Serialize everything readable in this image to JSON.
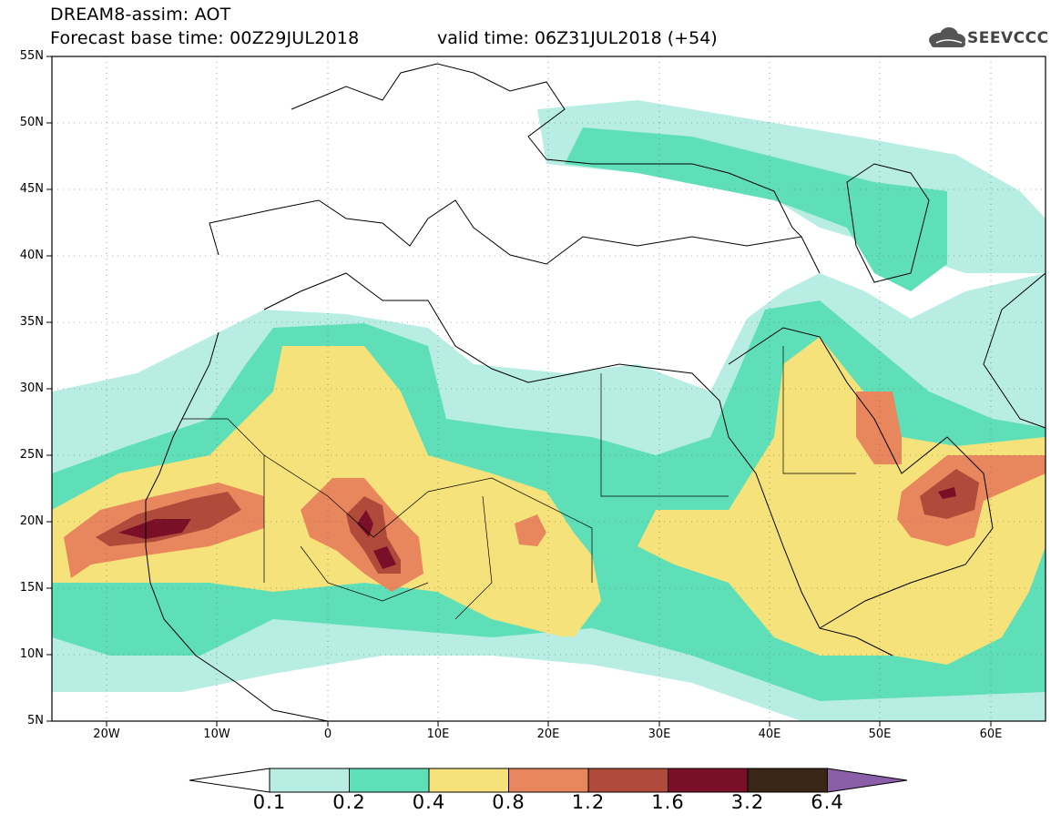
{
  "header": {
    "title_line1": "DREAM8-assim: AOT",
    "title_line2": "Forecast base time: 00Z29JUL2018",
    "valid_time": "valid time: 06Z31JUL2018 (+54)",
    "logo_text": "SEEVCCC"
  },
  "axes": {
    "lat_labels": [
      "55N",
      "50N",
      "45N",
      "40N",
      "35N",
      "30N",
      "25N",
      "20N",
      "15N",
      "10N",
      "5N"
    ],
    "lon_labels": [
      "20W",
      "10W",
      "0",
      "10E",
      "20E",
      "30E",
      "40E",
      "50E",
      "60E"
    ]
  },
  "colorbar": {
    "labels": [
      "0.1",
      "0.2",
      "0.4",
      "0.8",
      "1.2",
      "1.6",
      "3.2",
      "6.4"
    ],
    "colors": [
      "#b8ede4",
      "#5fdfb7",
      "#f6e27a",
      "#e8865e",
      "#b04a3a",
      "#7a0f28",
      "#3a2616",
      "#8a5fa8"
    ]
  },
  "map": {
    "extent": {
      "lon": [
        -25,
        65
      ],
      "lat": [
        5,
        55
      ]
    },
    "variable": "AOT"
  }
}
